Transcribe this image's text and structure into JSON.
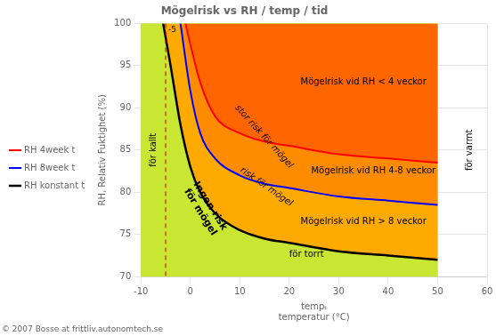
{
  "chart_data": {
    "type": "line",
    "title": "Mögelrisk vs RH / temp / tid",
    "xlabel": [
      "tempₜ",
      "temperatur (°C)"
    ],
    "ylabel": "RH, Relativ Fuktighet (%)",
    "xlim": [
      -10,
      60
    ],
    "ylim": [
      70,
      100
    ],
    "xticks": [
      -10,
      0,
      10,
      20,
      30,
      40,
      50,
      60
    ],
    "yticks": [
      70,
      75,
      80,
      85,
      90,
      95,
      100
    ],
    "grid": true,
    "legend": "left",
    "color": "#c8e632",
    "series": [
      {
        "name": "RH 4week t",
        "color": "red",
        "fill_color": "#ff6600",
        "x": [
          -1.0,
          0,
          2,
          5,
          10,
          15,
          20,
          30,
          40,
          50
        ],
        "values": [
          100,
          97.5,
          93,
          89,
          87,
          86,
          85.5,
          84.5,
          84,
          83.5
        ]
      },
      {
        "name": "RH 8week t",
        "color": "blue",
        "fill_color": "#ff8c00",
        "x": [
          -2.0,
          0,
          2,
          5,
          10,
          15,
          20,
          30,
          40,
          50
        ],
        "values": [
          100,
          92,
          87,
          84,
          82,
          81,
          80.5,
          79.5,
          79,
          78.5
        ]
      },
      {
        "name": "RH konstant t",
        "color": "black",
        "fill_color": "#ffaa00",
        "x": [
          -5.5,
          -4,
          -2,
          0,
          2,
          5,
          10,
          15,
          20,
          30,
          40,
          50
        ],
        "values": [
          100,
          95,
          88,
          83,
          80,
          77.5,
          75.5,
          74.5,
          74,
          73,
          72.5,
          72
        ]
      }
    ],
    "vlines": [
      {
        "x": -5,
        "label": "-5",
        "color": "#cc0000",
        "line_style": "dashed"
      }
    ],
    "annotations": [
      {
        "text": "Mögelrisk vid RH < 4 veckor",
        "x": 35,
        "y": 93
      },
      {
        "text": "Mögelrisk vid RH 4-8 veckor",
        "x": 37,
        "y": 82.5
      },
      {
        "text": "Mögelrisk vid RH > 8 veckor",
        "x": 35,
        "y": 76.5
      },
      {
        "text": "stor risk för mögel",
        "x": 9,
        "y": 90
      },
      {
        "text": "risk för mögel",
        "x": 10,
        "y": 82.5
      },
      {
        "text": "Ingen risk\nför mögel",
        "x": 3,
        "y": 78
      },
      {
        "text": "för torrt",
        "x": 20,
        "y": 72.3
      },
      {
        "text": "för kallt",
        "x": -7.5,
        "y": 85
      },
      {
        "text": "för varmt",
        "x": 56.5,
        "y": 85
      }
    ],
    "copyright": "© 2007 Bosse at frittliv.autonomtech.se"
  }
}
